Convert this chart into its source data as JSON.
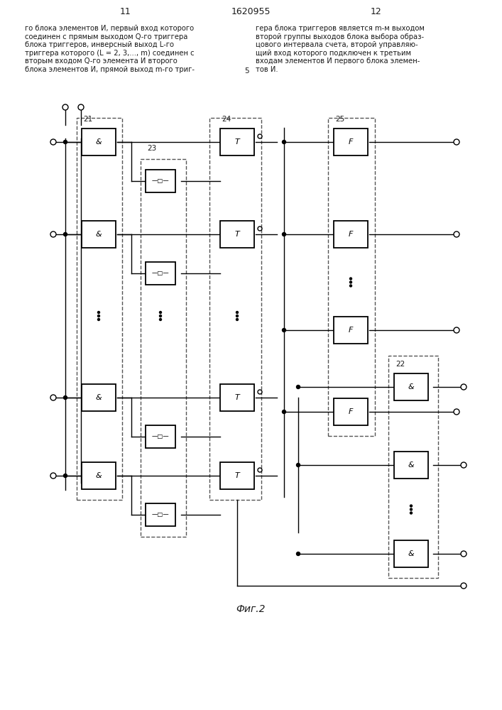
{
  "title": "1620955",
  "page_left": "11",
  "page_right": "12",
  "caption": "Фиг.2",
  "text_left": "го блока элементов И, первый вход которого\nсоединен с прямым выходом Q-го триггера\nблока триггеров, инверсный выход L-го\nтриггера которого (L = 2, 3,..., m) соединен с\nвторым входом Q-го элемента И второго\nблока элементов И, прямой выход m-го триг-",
  "text_right": "гера блока триггеров является m-м выходом\nвторой группы выходов блока выбора образ-\nцового интервала счета, второй управляю-\nщий вход которого подключен к третьим\nвходам элементов И первого блока элемен-\nтов И.",
  "line_number": "5",
  "bg_color": "#ffffff",
  "fg_color": "#1a1a1a",
  "dashed_color": "#555555"
}
